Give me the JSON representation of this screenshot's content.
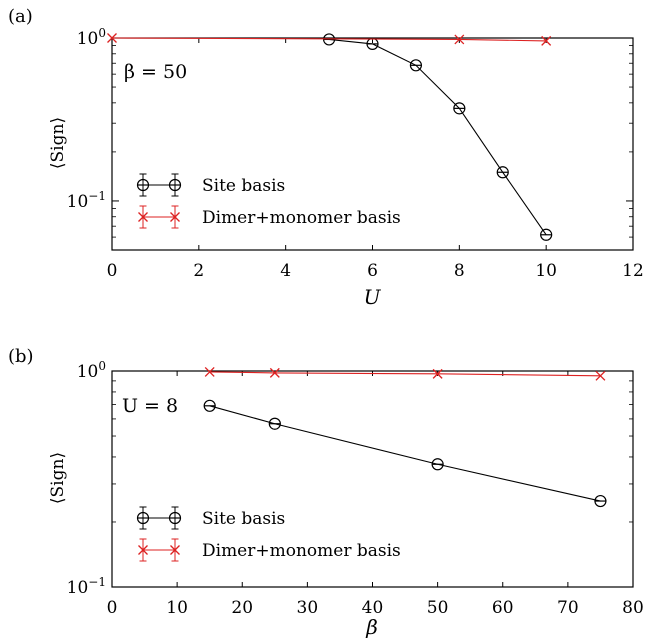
{
  "chart_data": [
    {
      "type": "line",
      "panel_label": "(a)",
      "annotation": "β = 50",
      "xlabel": "U",
      "ylabel": "⟨Sign⟩",
      "xlim": [
        0,
        12
      ],
      "ylim": [
        0.05,
        1.0
      ],
      "yscale": "log",
      "xticks": [
        "0",
        "2",
        "4",
        "6",
        "8",
        "10",
        "12"
      ],
      "yticks": [
        {
          "base": "10",
          "exp": "0"
        },
        {
          "base": "10",
          "exp": "−1"
        }
      ],
      "legend_position": "lower-left",
      "series": [
        {
          "name": "Site basis",
          "color": "#000000",
          "marker": "circle",
          "x": [
            5,
            6,
            7,
            8,
            9,
            10
          ],
          "y": [
            0.98,
            0.92,
            0.68,
            0.37,
            0.15,
            0.062
          ]
        },
        {
          "name": "Dimer+monomer basis",
          "color": "#dd2222",
          "marker": "x",
          "x": [
            0,
            8,
            10
          ],
          "y": [
            1.0,
            0.98,
            0.96
          ]
        }
      ]
    },
    {
      "type": "line",
      "panel_label": "(b)",
      "annotation": "U = 8",
      "xlabel": "β",
      "ylabel": "⟨Sign⟩",
      "xlim": [
        0,
        80
      ],
      "ylim": [
        0.1,
        1.0
      ],
      "yscale": "log",
      "xticks": [
        "0",
        "10",
        "20",
        "30",
        "40",
        "50",
        "60",
        "70",
        "80"
      ],
      "yticks": [
        {
          "base": "10",
          "exp": "0"
        },
        {
          "base": "10",
          "exp": "−1"
        }
      ],
      "legend_position": "lower-left",
      "series": [
        {
          "name": "Site basis",
          "color": "#000000",
          "marker": "circle",
          "x": [
            15,
            25,
            50,
            75
          ],
          "y": [
            0.69,
            0.57,
            0.37,
            0.25
          ]
        },
        {
          "name": "Dimer+monomer basis",
          "color": "#dd2222",
          "marker": "x",
          "x": [
            15,
            25,
            50,
            75
          ],
          "y": [
            0.99,
            0.98,
            0.97,
            0.95
          ]
        }
      ]
    }
  ]
}
